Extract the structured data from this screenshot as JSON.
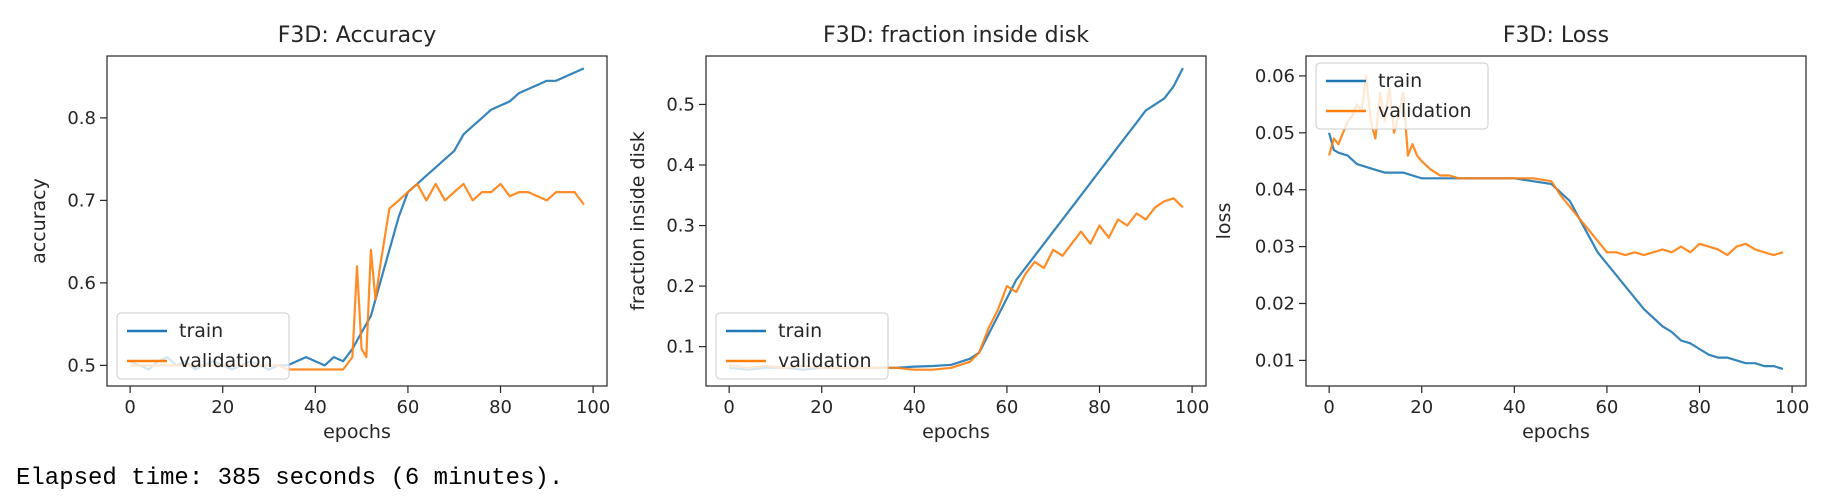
{
  "chart_data": [
    {
      "type": "line",
      "title": "F3D: Accuracy",
      "xlabel": "epochs",
      "ylabel": "accuracy",
      "xlim": [
        -5,
        103
      ],
      "ylim": [
        0.475,
        0.875
      ],
      "xticks": [
        0,
        20,
        40,
        60,
        80,
        100
      ],
      "yticks": [
        0.5,
        0.6,
        0.7,
        0.8
      ],
      "tick_format": "1",
      "legend": "lower-left",
      "series": [
        {
          "name": "train",
          "color": "#1f77b4",
          "x": [
            0,
            2,
            4,
            6,
            8,
            10,
            12,
            14,
            16,
            18,
            20,
            22,
            24,
            26,
            28,
            30,
            32,
            34,
            36,
            38,
            40,
            42,
            44,
            46,
            48,
            50,
            52,
            54,
            56,
            58,
            60,
            62,
            64,
            66,
            68,
            70,
            72,
            74,
            76,
            78,
            80,
            82,
            84,
            86,
            88,
            90,
            92,
            94,
            96,
            98
          ],
          "y": [
            0.505,
            0.5,
            0.495,
            0.505,
            0.51,
            0.5,
            0.505,
            0.495,
            0.5,
            0.505,
            0.5,
            0.495,
            0.5,
            0.505,
            0.5,
            0.495,
            0.5,
            0.5,
            0.505,
            0.51,
            0.505,
            0.5,
            0.51,
            0.505,
            0.52,
            0.54,
            0.56,
            0.6,
            0.64,
            0.68,
            0.71,
            0.72,
            0.73,
            0.74,
            0.75,
            0.76,
            0.78,
            0.79,
            0.8,
            0.81,
            0.815,
            0.82,
            0.83,
            0.835,
            0.84,
            0.845,
            0.845,
            0.85,
            0.855,
            0.86
          ]
        },
        {
          "name": "validation",
          "color": "#ff7f0e",
          "x": [
            0,
            2,
            4,
            6,
            8,
            10,
            12,
            14,
            16,
            18,
            20,
            22,
            24,
            26,
            28,
            30,
            32,
            34,
            36,
            38,
            40,
            42,
            44,
            46,
            48,
            49,
            50,
            51,
            52,
            53,
            54,
            56,
            58,
            60,
            62,
            64,
            66,
            68,
            70,
            72,
            74,
            76,
            78,
            80,
            82,
            84,
            86,
            88,
            90,
            92,
            94,
            96,
            98
          ],
          "y": [
            0.5,
            0.5,
            0.5,
            0.5,
            0.5,
            0.5,
            0.5,
            0.5,
            0.5,
            0.5,
            0.5,
            0.5,
            0.5,
            0.5,
            0.5,
            0.5,
            0.5,
            0.495,
            0.495,
            0.495,
            0.495,
            0.495,
            0.495,
            0.495,
            0.51,
            0.62,
            0.52,
            0.51,
            0.64,
            0.58,
            0.62,
            0.69,
            0.7,
            0.71,
            0.72,
            0.7,
            0.72,
            0.7,
            0.71,
            0.72,
            0.7,
            0.71,
            0.71,
            0.72,
            0.705,
            0.71,
            0.71,
            0.705,
            0.7,
            0.71,
            0.71,
            0.71,
            0.695
          ]
        }
      ]
    },
    {
      "type": "line",
      "title": "F3D: fraction inside disk",
      "xlabel": "epochs",
      "ylabel": "fraction inside disk",
      "xlim": [
        -5,
        103
      ],
      "ylim": [
        0.035,
        0.58
      ],
      "xticks": [
        0,
        20,
        40,
        60,
        80,
        100
      ],
      "yticks": [
        0.1,
        0.2,
        0.3,
        0.4,
        0.5
      ],
      "tick_format": "1",
      "legend": "lower-left",
      "series": [
        {
          "name": "train",
          "color": "#1f77b4",
          "x": [
            0,
            4,
            8,
            12,
            16,
            20,
            24,
            28,
            32,
            36,
            40,
            44,
            48,
            50,
            52,
            54,
            56,
            58,
            60,
            62,
            64,
            66,
            68,
            70,
            72,
            74,
            76,
            78,
            80,
            82,
            84,
            86,
            88,
            90,
            92,
            94,
            96,
            98
          ],
          "y": [
            0.065,
            0.062,
            0.065,
            0.065,
            0.062,
            0.065,
            0.065,
            0.065,
            0.065,
            0.065,
            0.067,
            0.068,
            0.07,
            0.075,
            0.08,
            0.09,
            0.12,
            0.15,
            0.18,
            0.21,
            0.23,
            0.25,
            0.27,
            0.29,
            0.31,
            0.33,
            0.35,
            0.37,
            0.39,
            0.41,
            0.43,
            0.45,
            0.47,
            0.49,
            0.5,
            0.51,
            0.53,
            0.56
          ]
        },
        {
          "name": "validation",
          "color": "#ff7f0e",
          "x": [
            0,
            4,
            8,
            12,
            16,
            20,
            24,
            28,
            32,
            36,
            40,
            44,
            48,
            50,
            52,
            54,
            56,
            58,
            60,
            62,
            64,
            66,
            68,
            70,
            72,
            74,
            76,
            78,
            80,
            82,
            84,
            86,
            88,
            90,
            92,
            94,
            96,
            98
          ],
          "y": [
            0.07,
            0.065,
            0.068,
            0.065,
            0.068,
            0.065,
            0.065,
            0.065,
            0.065,
            0.065,
            0.062,
            0.062,
            0.065,
            0.07,
            0.075,
            0.09,
            0.13,
            0.16,
            0.2,
            0.19,
            0.22,
            0.24,
            0.23,
            0.26,
            0.25,
            0.27,
            0.29,
            0.27,
            0.3,
            0.28,
            0.31,
            0.3,
            0.32,
            0.31,
            0.33,
            0.34,
            0.345,
            0.33
          ]
        }
      ]
    },
    {
      "type": "line",
      "title": "F3D: Loss",
      "xlabel": "epochs",
      "ylabel": "loss",
      "xlim": [
        -5,
        103
      ],
      "ylim": [
        0.0055,
        0.0635
      ],
      "xticks": [
        0,
        20,
        40,
        60,
        80,
        100
      ],
      "yticks": [
        0.01,
        0.02,
        0.03,
        0.04,
        0.05,
        0.06
      ],
      "tick_format": "2",
      "legend": "upper-left",
      "series": [
        {
          "name": "train",
          "color": "#1f77b4",
          "x": [
            0,
            1,
            2,
            4,
            6,
            8,
            10,
            12,
            14,
            16,
            18,
            20,
            24,
            28,
            32,
            36,
            40,
            44,
            48,
            50,
            52,
            54,
            56,
            58,
            60,
            62,
            64,
            66,
            68,
            70,
            72,
            74,
            76,
            78,
            80,
            82,
            84,
            86,
            88,
            90,
            92,
            94,
            96,
            98
          ],
          "y": [
            0.05,
            0.047,
            0.0465,
            0.046,
            0.0445,
            0.044,
            0.0435,
            0.043,
            0.043,
            0.043,
            0.0425,
            0.042,
            0.042,
            0.042,
            0.042,
            0.042,
            0.042,
            0.0415,
            0.041,
            0.0395,
            0.038,
            0.035,
            0.032,
            0.029,
            0.027,
            0.025,
            0.023,
            0.021,
            0.019,
            0.0175,
            0.016,
            0.015,
            0.0135,
            0.013,
            0.012,
            0.011,
            0.0105,
            0.0105,
            0.01,
            0.0095,
            0.0095,
            0.009,
            0.009,
            0.0085
          ]
        },
        {
          "name": "validation",
          "color": "#ff7f0e",
          "x": [
            0,
            1,
            2,
            3,
            4,
            5,
            6,
            7,
            8,
            9,
            10,
            11,
            12,
            13,
            14,
            15,
            16,
            17,
            18,
            19,
            20,
            22,
            24,
            26,
            28,
            32,
            36,
            40,
            44,
            48,
            50,
            52,
            54,
            56,
            58,
            60,
            62,
            64,
            66,
            68,
            70,
            72,
            74,
            76,
            78,
            80,
            82,
            84,
            86,
            88,
            90,
            92,
            94,
            96,
            98
          ],
          "y": [
            0.046,
            0.049,
            0.048,
            0.05,
            0.052,
            0.053,
            0.055,
            0.054,
            0.06,
            0.052,
            0.049,
            0.057,
            0.052,
            0.058,
            0.05,
            0.053,
            0.057,
            0.046,
            0.048,
            0.046,
            0.045,
            0.0435,
            0.0425,
            0.0425,
            0.042,
            0.042,
            0.042,
            0.042,
            0.042,
            0.0415,
            0.039,
            0.037,
            0.035,
            0.033,
            0.031,
            0.029,
            0.029,
            0.0285,
            0.029,
            0.0285,
            0.029,
            0.0295,
            0.029,
            0.03,
            0.029,
            0.0305,
            0.03,
            0.0295,
            0.0285,
            0.03,
            0.0305,
            0.0295,
            0.029,
            0.0285,
            0.029
          ]
        }
      ]
    }
  ],
  "footer": {
    "elapsed_text": "Elapsed time: 385 seconds (6 minutes)."
  }
}
